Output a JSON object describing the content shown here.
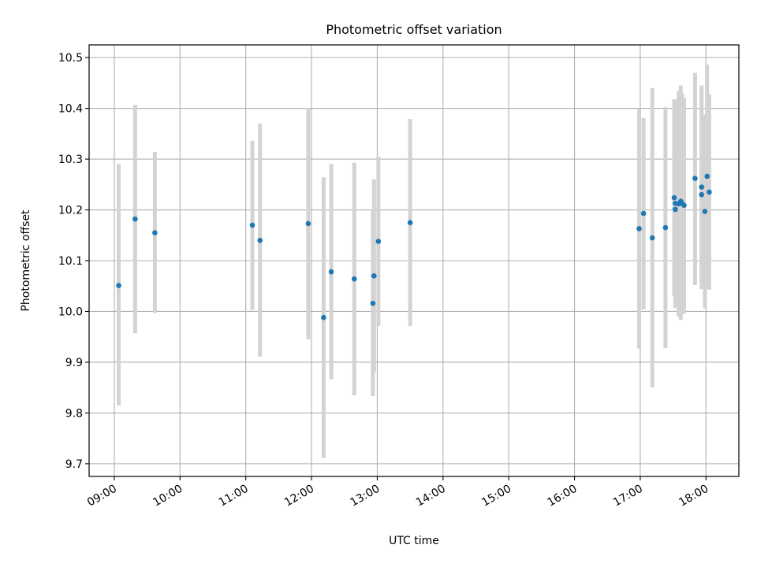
{
  "chart_data": {
    "type": "scatter",
    "title": "Photometric offset variation",
    "xlabel": "UTC time",
    "ylabel": "Photometric offset",
    "x_tick_labels": [
      "09:00",
      "10:00",
      "11:00",
      "12:00",
      "13:00",
      "14:00",
      "15:00",
      "16:00",
      "17:00",
      "18:00"
    ],
    "y_tick_labels": [
      "9.7",
      "9.8",
      "9.9",
      "10.0",
      "10.1",
      "10.2",
      "10.3",
      "10.4",
      "10.5"
    ],
    "xlim": [
      "08:37",
      "18:30"
    ],
    "ylim": [
      9.675,
      10.525
    ],
    "grid": true,
    "colors": {
      "point": "#1f77b4",
      "errorbar": "#d3d3d3",
      "grid": "#b0b0b0"
    },
    "series": [
      {
        "points": [
          {
            "x": "09:04",
            "y": 10.051,
            "low": 9.815,
            "high": 10.29
          },
          {
            "x": "09:19",
            "y": 10.182,
            "low": 9.957,
            "high": 10.407
          },
          {
            "x": "09:37",
            "y": 10.155,
            "low": 9.997,
            "high": 10.314
          },
          {
            "x": "11:06",
            "y": 10.17,
            "low": 10.003,
            "high": 10.336
          },
          {
            "x": "11:13",
            "y": 10.14,
            "low": 9.911,
            "high": 10.37
          },
          {
            "x": "11:57",
            "y": 10.173,
            "low": 9.945,
            "high": 10.401
          },
          {
            "x": "12:11",
            "y": 9.988,
            "low": 9.711,
            "high": 10.264
          },
          {
            "x": "12:18",
            "y": 10.078,
            "low": 9.866,
            "high": 10.29
          },
          {
            "x": "12:39",
            "y": 10.064,
            "low": 9.835,
            "high": 10.293
          },
          {
            "x": "12:56",
            "y": 10.016,
            "low": 9.833,
            "high": 10.2
          },
          {
            "x": "12:57",
            "y": 10.07,
            "low": 9.88,
            "high": 10.26
          },
          {
            "x": "13:01",
            "y": 10.138,
            "low": 9.971,
            "high": 10.305
          },
          {
            "x": "13:30",
            "y": 10.175,
            "low": 9.971,
            "high": 10.379
          },
          {
            "x": "16:59",
            "y": 10.163,
            "low": 9.927,
            "high": 10.399
          },
          {
            "x": "17:03",
            "y": 10.193,
            "low": 10.004,
            "high": 10.381
          },
          {
            "x": "17:11",
            "y": 10.145,
            "low": 9.85,
            "high": 10.44
          },
          {
            "x": "17:23",
            "y": 10.165,
            "low": 9.928,
            "high": 10.402
          },
          {
            "x": "17:31",
            "y": 10.224,
            "low": 10.03,
            "high": 10.418
          },
          {
            "x": "17:32",
            "y": 10.213,
            "low": 10.01,
            "high": 10.416
          },
          {
            "x": "17:32",
            "y": 10.201,
            "low": 10.007,
            "high": 10.395
          },
          {
            "x": "17:35",
            "y": 10.212,
            "low": 9.99,
            "high": 10.434
          },
          {
            "x": "17:37",
            "y": 10.217,
            "low": 9.983,
            "high": 10.445
          },
          {
            "x": "17:38",
            "y": 10.213,
            "low": 9.995,
            "high": 10.43
          },
          {
            "x": "17:40",
            "y": 10.209,
            "low": 9.996,
            "high": 10.421
          },
          {
            "x": "17:50",
            "y": 10.262,
            "low": 10.052,
            "high": 10.47
          },
          {
            "x": "17:56",
            "y": 10.245,
            "low": 10.044,
            "high": 10.445
          },
          {
            "x": "17:56",
            "y": 10.23,
            "low": 10.059,
            "high": 10.4
          },
          {
            "x": "17:59",
            "y": 10.197,
            "low": 10.006,
            "high": 10.388
          },
          {
            "x": "18:01",
            "y": 10.266,
            "low": 10.045,
            "high": 10.486
          },
          {
            "x": "18:03",
            "y": 10.235,
            "low": 10.043,
            "high": 10.427
          }
        ]
      }
    ]
  }
}
